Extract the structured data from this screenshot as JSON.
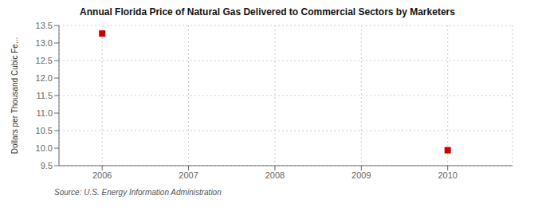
{
  "chart_data": {
    "type": "scatter",
    "title": "Annual Florida Price of Natural Gas Delivered to Commercial Sectors by Marketers",
    "y_label": "Dollars per Thousand Cubic Fe...",
    "annotations": [
      "Source: U.S. Energy Information Administration"
    ],
    "x": [
      2006,
      2010
    ],
    "values": [
      13.27,
      9.94
    ],
    "color": "#cc0000",
    "marker": "square",
    "xlim": [
      2005.5,
      2010.75
    ],
    "ylim": [
      9.5,
      13.5
    ],
    "xticks": [
      2006,
      2007,
      2008,
      2009,
      2010
    ],
    "yticks": [
      9.5,
      {
        "value": 10.0,
        "label": "10.0"
      },
      10.5,
      {
        "value": 11.0,
        "label": "11.0"
      },
      11.5,
      {
        "value": 12.0,
        "label": "12.0"
      },
      12.5,
      {
        "value": 13.0,
        "label": "13.0"
      },
      13.5
    ],
    "grid": true
  }
}
